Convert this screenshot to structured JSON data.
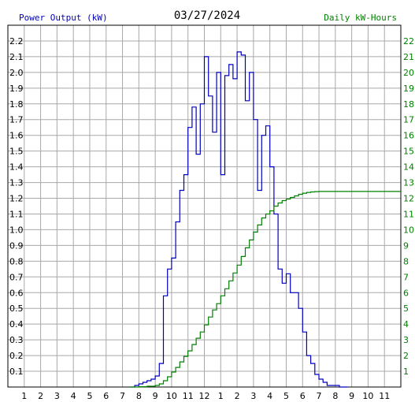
{
  "header": {
    "left_label": "Power Output (kW)",
    "date": "03/27/2024",
    "right_label": "Daily kW-Hours"
  },
  "colors": {
    "power": "#0000c0",
    "energy": "#008000",
    "grid": "#a8a8a8",
    "text": "#000000"
  },
  "chart_data": {
    "type": "line",
    "title": "03/27/2024",
    "grid": true,
    "x_tick_labels": [
      "1",
      "2",
      "3",
      "4",
      "5",
      "6",
      "7",
      "8",
      "9",
      "10",
      "11",
      "12",
      "1",
      "2",
      "3",
      "4",
      "5",
      "6",
      "7",
      "8",
      "9",
      "10",
      "11"
    ],
    "x_range_hours": [
      0,
      24
    ],
    "y_left": {
      "label": "Power Output (kW)",
      "range": [
        0,
        2.3
      ],
      "ticks": [
        "0.1",
        "0.2",
        "0.3",
        "0.4",
        "0.5",
        "0.6",
        "0.7",
        "0.8",
        "0.9",
        "1.0",
        "1.1",
        "1.2",
        "1.3",
        "1.4",
        "1.5",
        "1.6",
        "1.7",
        "1.8",
        "1.9",
        "2.0",
        "2.1",
        "2.2"
      ]
    },
    "y_right": {
      "label": "Daily kW-Hours",
      "range": [
        0,
        23
      ],
      "ticks": [
        "1",
        "2",
        "3",
        "4",
        "5",
        "6",
        "7",
        "8",
        "9",
        "10",
        "11",
        "12",
        "13",
        "14",
        "15",
        "16",
        "17",
        "18",
        "19",
        "20",
        "21",
        "22"
      ]
    },
    "series": [
      {
        "name": "Power Output (kW)",
        "axis": "left",
        "step": true,
        "x": [
          7.5,
          7.75,
          8.0,
          8.25,
          8.5,
          8.75,
          9.0,
          9.25,
          9.5,
          9.75,
          10.0,
          10.25,
          10.5,
          10.75,
          11.0,
          11.25,
          11.5,
          11.75,
          12.0,
          12.25,
          12.5,
          12.75,
          13.0,
          13.25,
          13.5,
          13.75,
          14.0,
          14.25,
          14.5,
          14.75,
          15.0,
          15.25,
          15.5,
          15.75,
          16.0,
          16.25,
          16.5,
          16.75,
          17.0,
          17.25,
          17.5,
          17.75,
          18.0,
          18.25,
          18.5,
          18.75,
          19.0,
          19.25,
          19.5,
          19.75,
          20.0,
          20.25,
          20.5
        ],
        "y": [
          0.0,
          0.01,
          0.02,
          0.03,
          0.04,
          0.05,
          0.07,
          0.15,
          0.58,
          0.75,
          0.82,
          1.05,
          1.25,
          1.35,
          1.65,
          1.78,
          1.48,
          1.8,
          2.1,
          1.85,
          1.62,
          2.0,
          1.35,
          1.98,
          2.05,
          1.96,
          2.13,
          2.11,
          1.82,
          2.0,
          1.7,
          1.25,
          1.6,
          1.66,
          1.4,
          1.1,
          0.75,
          0.66,
          0.72,
          0.6,
          0.6,
          0.5,
          0.35,
          0.2,
          0.15,
          0.08,
          0.05,
          0.03,
          0.01,
          0.01,
          0.01,
          0.0,
          0.0
        ]
      },
      {
        "name": "Daily kW-Hours",
        "axis": "right",
        "step": true,
        "x": [
          7.5,
          8.0,
          8.5,
          9.0,
          9.25,
          9.5,
          9.75,
          10.0,
          10.25,
          10.5,
          10.75,
          11.0,
          11.25,
          11.5,
          11.75,
          12.0,
          12.25,
          12.5,
          12.75,
          13.0,
          13.25,
          13.5,
          13.75,
          14.0,
          14.25,
          14.5,
          14.75,
          15.0,
          15.25,
          15.5,
          15.75,
          16.0,
          16.25,
          16.5,
          16.75,
          17.0,
          17.25,
          17.5,
          17.75,
          18.0,
          18.25,
          18.5,
          18.75,
          19.0,
          24.0
        ],
        "y": [
          0.0,
          0.02,
          0.05,
          0.1,
          0.2,
          0.4,
          0.65,
          0.95,
          1.25,
          1.6,
          1.95,
          2.3,
          2.7,
          3.1,
          3.5,
          3.95,
          4.45,
          4.9,
          5.3,
          5.8,
          6.25,
          6.75,
          7.25,
          7.75,
          8.3,
          8.85,
          9.35,
          9.85,
          10.3,
          10.75,
          11.0,
          11.2,
          11.5,
          11.7,
          11.85,
          11.95,
          12.05,
          12.15,
          12.25,
          12.32,
          12.37,
          12.4,
          12.42,
          12.43,
          12.43
        ]
      }
    ]
  }
}
